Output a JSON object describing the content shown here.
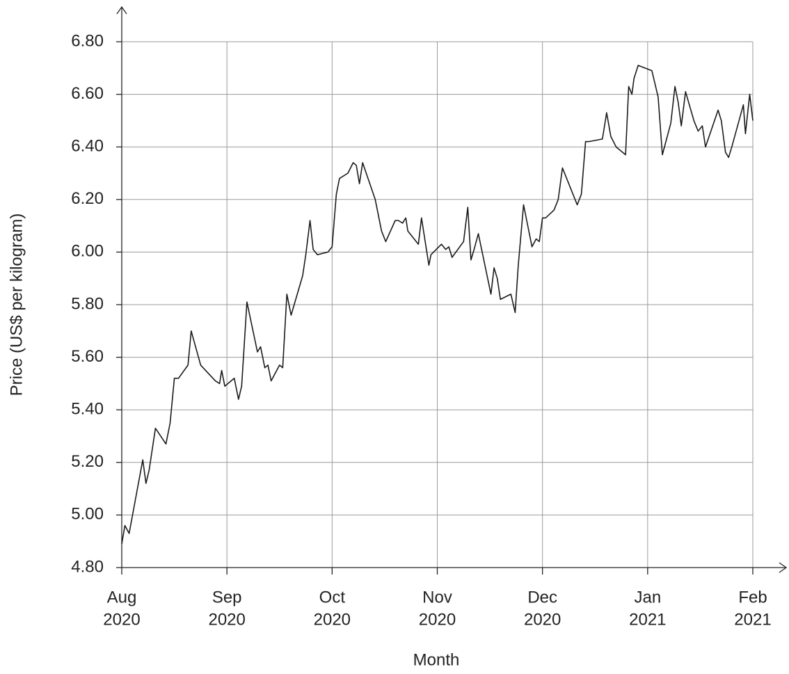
{
  "chart_data": {
    "type": "line",
    "x_label": "Month",
    "y_label": "Price (US$ per kilogram)",
    "xlim": [
      0,
      6
    ],
    "ylim": [
      4.8,
      6.8
    ],
    "xticks": [
      {
        "value": 0,
        "label": [
          "Aug",
          "2020"
        ]
      },
      {
        "value": 1,
        "label": [
          "Sep",
          "2020"
        ]
      },
      {
        "value": 2,
        "label": [
          "Oct",
          "2020"
        ]
      },
      {
        "value": 3,
        "label": [
          "Nov",
          "2020"
        ]
      },
      {
        "value": 4,
        "label": [
          "Dec",
          "2020"
        ]
      },
      {
        "value": 5,
        "label": [
          "Jan",
          "2021"
        ]
      },
      {
        "value": 6,
        "label": [
          "Feb",
          "2021"
        ]
      }
    ],
    "yticks": [
      {
        "value": 4.8,
        "label": "4.80"
      },
      {
        "value": 5.0,
        "label": "5.00"
      },
      {
        "value": 5.2,
        "label": "5.20"
      },
      {
        "value": 5.4,
        "label": "5.40"
      },
      {
        "value": 5.6,
        "label": "5.60"
      },
      {
        "value": 5.8,
        "label": "5.80"
      },
      {
        "value": 6.0,
        "label": "6.00"
      },
      {
        "value": 6.2,
        "label": "6.20"
      },
      {
        "value": 6.4,
        "label": "6.40"
      },
      {
        "value": 6.6,
        "label": "6.60"
      },
      {
        "value": 6.8,
        "label": "6.80"
      }
    ],
    "grid": true,
    "color": "#1a1a1a",
    "x": [
      0,
      0.03,
      0.07,
      0.2,
      0.23,
      0.26,
      0.32,
      0.42,
      0.46,
      0.5,
      0.54,
      0.63,
      0.66,
      0.75,
      0.89,
      0.93,
      0.95,
      0.98,
      1.07,
      1.11,
      1.14,
      1.19,
      1.29,
      1.32,
      1.36,
      1.39,
      1.42,
      1.5,
      1.53,
      1.57,
      1.61,
      1.72,
      1.75,
      1.79,
      1.82,
      1.86,
      1.96,
      2.0,
      2.04,
      2.07,
      2.15,
      2.2,
      2.23,
      2.26,
      2.29,
      2.41,
      2.47,
      2.51,
      2.6,
      2.63,
      2.67,
      2.7,
      2.72,
      2.82,
      2.85,
      2.92,
      2.94,
      3.04,
      3.08,
      3.11,
      3.14,
      3.25,
      3.29,
      3.32,
      3.35,
      3.39,
      3.51,
      3.54,
      3.57,
      3.6,
      3.7,
      3.74,
      3.77,
      3.82,
      3.9,
      3.94,
      3.97,
      4.0,
      4.03,
      4.11,
      4.15,
      4.19,
      4.33,
      4.37,
      4.41,
      4.44,
      4.57,
      4.61,
      4.65,
      4.7,
      4.79,
      4.82,
      4.85,
      4.87,
      4.91,
      5.04,
      5.1,
      5.14,
      5.22,
      5.26,
      5.29,
      5.32,
      5.36,
      5.44,
      5.48,
      5.52,
      5.55,
      5.67,
      5.7,
      5.74,
      5.77,
      5.8,
      5.91,
      5.93,
      5.97,
      6.0
    ],
    "values": [
      4.89,
      4.96,
      4.93,
      5.21,
      5.12,
      5.17,
      5.33,
      5.27,
      5.35,
      5.52,
      5.52,
      5.57,
      5.7,
      5.57,
      5.51,
      5.5,
      5.55,
      5.49,
      5.52,
      5.44,
      5.49,
      5.81,
      5.62,
      5.64,
      5.56,
      5.57,
      5.51,
      5.57,
      5.56,
      5.84,
      5.76,
      5.91,
      5.99,
      6.12,
      6.01,
      5.99,
      6.0,
      6.02,
      6.22,
      6.28,
      6.3,
      6.34,
      6.33,
      6.26,
      6.34,
      6.2,
      6.08,
      6.04,
      6.12,
      6.12,
      6.11,
      6.13,
      6.08,
      6.03,
      6.13,
      5.95,
      5.99,
      6.03,
      6.01,
      6.02,
      5.98,
      6.04,
      6.17,
      5.97,
      6.01,
      6.07,
      5.84,
      5.94,
      5.9,
      5.82,
      5.84,
      5.77,
      5.95,
      6.18,
      6.02,
      6.05,
      6.04,
      6.13,
      6.13,
      6.16,
      6.2,
      6.32,
      6.18,
      6.22,
      6.42,
      6.42,
      6.43,
      6.53,
      6.44,
      6.4,
      6.37,
      6.63,
      6.6,
      6.66,
      6.71,
      6.69,
      6.59,
      6.37,
      6.49,
      6.63,
      6.57,
      6.48,
      6.61,
      6.5,
      6.46,
      6.48,
      6.4,
      6.54,
      6.5,
      6.38,
      6.36,
      6.4,
      6.56,
      6.45,
      6.6,
      6.5
    ]
  }
}
